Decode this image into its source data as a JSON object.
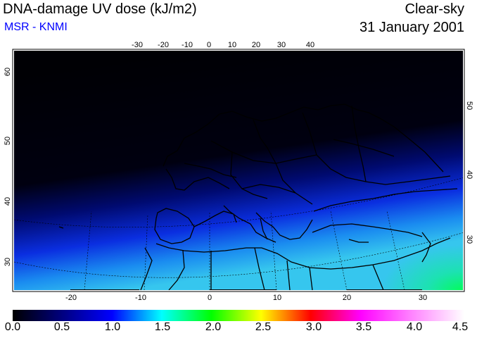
{
  "header": {
    "title": "DNA-damage UV dose (kJ/m2)",
    "source": "MSR - KNMI",
    "sky_condition": "Clear-sky",
    "date": "31 January 2001"
  },
  "map": {
    "top_lon_ticks": [
      "-30",
      "-20",
      "-10",
      "0",
      "10",
      "20",
      "30",
      "40"
    ],
    "bottom_lon_ticks": [
      "-20",
      "-10",
      "0",
      "10",
      "20",
      "30"
    ],
    "left_lat_ticks": [
      "60",
      "50",
      "40",
      "30"
    ],
    "right_lat_ticks": [
      "50",
      "40",
      "30"
    ]
  },
  "colorbar": {
    "labels": [
      "0.0",
      "0.5",
      "1.0",
      "1.5",
      "2.0",
      "2.5",
      "3.0",
      "3.5",
      "4.0",
      "4.5"
    ],
    "colors": [
      "#000000",
      "#000080",
      "#0000ff",
      "#00ffff",
      "#00ff00",
      "#ffff00",
      "#ff0000",
      "#ff00ff",
      "#ff80ff",
      "#ffffff"
    ]
  }
}
